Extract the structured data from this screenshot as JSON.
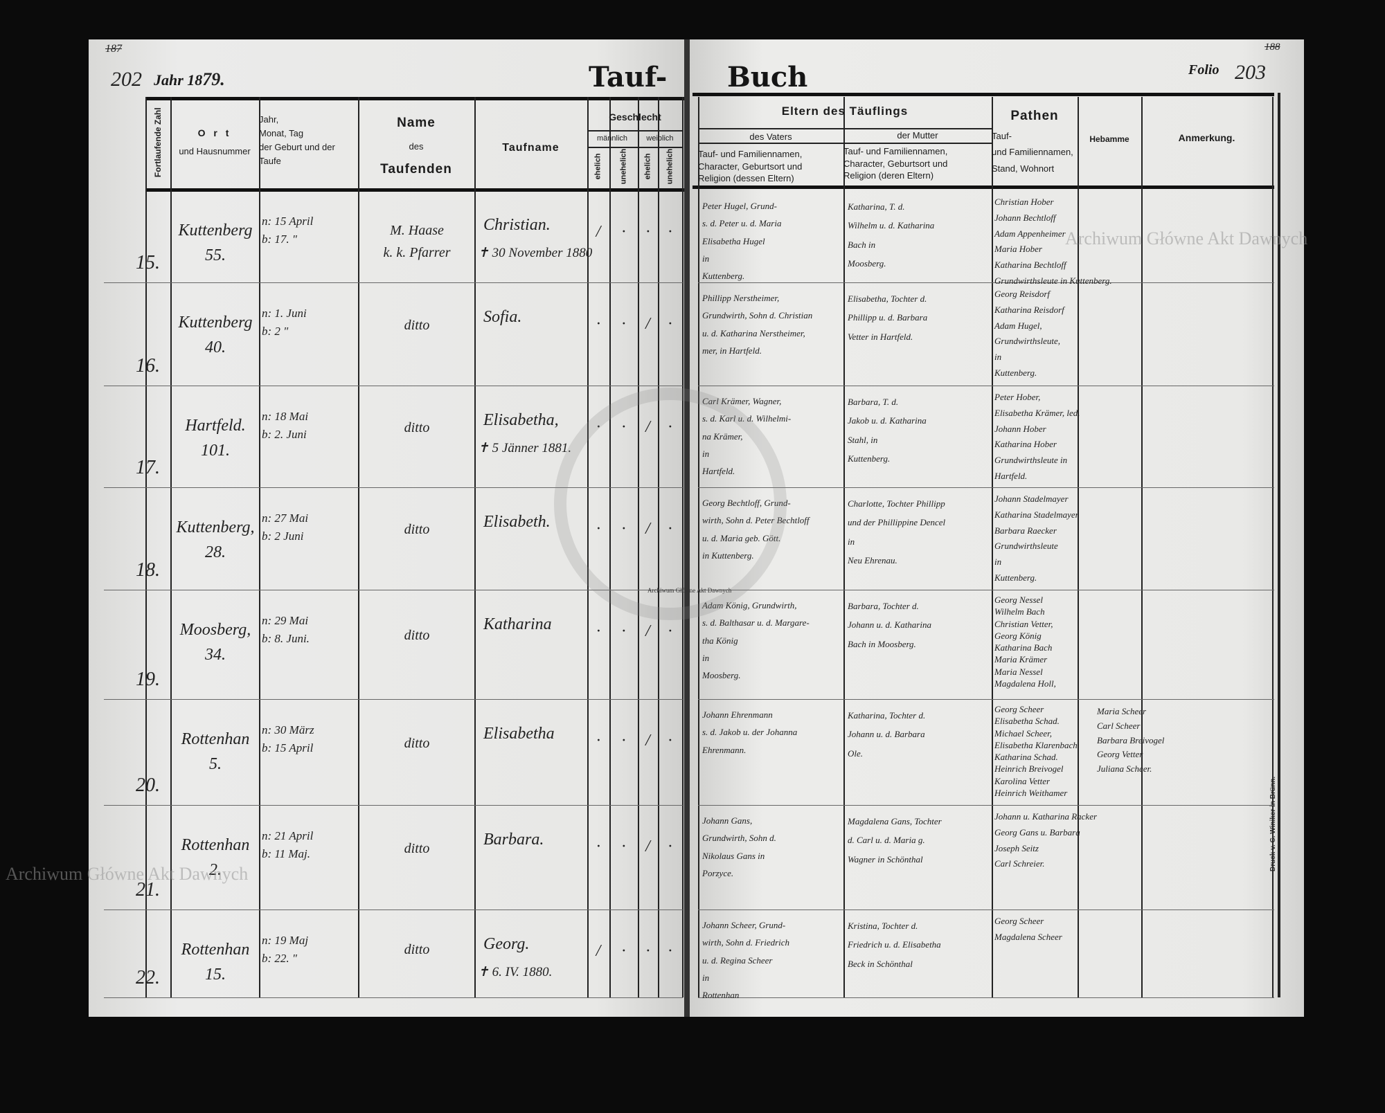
{
  "left_page": {
    "old_folio": "187",
    "folio_number": "202",
    "year_label": "Jahr 18",
    "year_value": "79.",
    "title_part": "Tauf-"
  },
  "right_page": {
    "title_part": "Buch",
    "folio_label": "Folio",
    "folio_number": "203",
    "old_folio": "188",
    "printer": "Druck v. C. Winiker in Brünn."
  },
  "headers": {
    "fortlaufende_zahl": "Fortlaufende Zahl",
    "ort": "O r t",
    "ort_sub": "und Hausnummer",
    "datum": [
      "Jahr,",
      "Monat, Tag",
      "der Geburt und der",
      "Taufe"
    ],
    "name_des": [
      "Name",
      "des",
      "Taufenden"
    ],
    "taufname": "Taufname",
    "geschlecht": "Geschlecht",
    "maennlich": "männlich",
    "weiblich": "weiblich",
    "ehelich": "ehelich",
    "unehelich": "unehelich",
    "eltern": "Eltern des Täuflings",
    "vaters": "des Vaters",
    "vaters_sub": [
      "Tauf- und Familiennamen,",
      "Character, Geburtsort und",
      "Religion (dessen Eltern)"
    ],
    "mutter": "der Mutter",
    "mutter_sub": [
      "Tauf- und Familiennamen,",
      "Character, Geburtsort und",
      "Religion (deren Eltern)"
    ],
    "pathen": "Pathen",
    "pathen_sub": [
      "Tauf-",
      "und Familiennamen,",
      "Stand, Wohnort"
    ],
    "hebamme": "Hebamme",
    "anmerkung": "Anmerkung."
  },
  "rows": [
    {
      "no": "15.",
      "ort": [
        "Kuttenberg",
        "55."
      ],
      "datum": [
        "n: 15 April",
        "b: 17. \""
      ],
      "taufende": [
        "M. Haase",
        "k. k. Pfarrer"
      ],
      "taufname": "Christian.",
      "note": "✝ 30 November 1880",
      "marks": [
        "/",
        "·",
        "·",
        "·"
      ],
      "vater": [
        "Peter Hugel, Grund-",
        "s. d. Peter u. d. Maria",
        "Elisabetha Hugel",
        "in",
        "Kuttenberg."
      ],
      "mutter": [
        "Katharina, T. d.",
        "Wilhelm u. d. Katharina",
        "Bach in",
        "Moosberg."
      ],
      "pathen": [
        "Christian Hober",
        "Johann Bechtloff",
        "Adam Appenheimer",
        "Maria Hober",
        "Katharina Bechtloff",
        "Grundwirthsleute in Kuttenberg."
      ],
      "hebamme": []
    },
    {
      "no": "16.",
      "ort": [
        "Kuttenberg",
        "40."
      ],
      "datum": [
        "n: 1. Juni",
        "b: 2 \""
      ],
      "taufende": [
        "ditto"
      ],
      "taufname": "Sofia.",
      "note": "",
      "marks": [
        "·",
        "·",
        "/",
        "·"
      ],
      "vater": [
        "Phillipp Nerstheimer,",
        "Grundwirth, Sohn d. Christian",
        "u. d. Katharina Nerstheimer,",
        "mer, in Hartfeld."
      ],
      "mutter": [
        "Elisabetha, Tochter d.",
        "Phillipp u. d. Barbara",
        "Vetter in Hartfeld."
      ],
      "pathen": [
        "Georg Reisdorf",
        "Katharina Reisdorf",
        "Adam Hugel,",
        "Grundwirthsleute,",
        "in",
        "Kuttenberg."
      ],
      "hebamme": []
    },
    {
      "no": "17.",
      "ort": [
        "Hartfeld.",
        "101."
      ],
      "datum": [
        "n: 18 Mai",
        "b: 2. Juni"
      ],
      "taufende": [
        "ditto"
      ],
      "taufname": "Elisabetha,",
      "note": "✝ 5 Jänner 1881.",
      "marks": [
        "·",
        "·",
        "/",
        "·"
      ],
      "vater": [
        "Carl Krämer, Wagner,",
        "s. d. Karl u. d. Wilhelmi-",
        "na Krämer,",
        "in",
        "Hartfeld."
      ],
      "mutter": [
        "Barbara, T. d.",
        "Jakob u. d. Katharina",
        "Stahl, in",
        "Kuttenberg."
      ],
      "pathen": [
        "Peter Hober,",
        "Elisabetha Krämer, led.",
        "Johann Hober",
        "Katharina Hober",
        "Grundwirthsleute in",
        "Hartfeld."
      ],
      "hebamme": []
    },
    {
      "no": "18.",
      "ort": [
        "Kuttenberg,",
        "28."
      ],
      "datum": [
        "n: 27 Mai",
        "b: 2 Juni"
      ],
      "taufende": [
        "ditto"
      ],
      "taufname": "Elisabeth.",
      "note": "",
      "marks": [
        "·",
        "·",
        "/",
        "·"
      ],
      "vater": [
        "Georg Bechtloff, Grund-",
        "wirth, Sohn d. Peter Bechtloff",
        "u. d. Maria geb. Gött.",
        "in Kuttenberg."
      ],
      "mutter": [
        "Charlotte, Tochter Phillipp",
        "und der Phillippine Dencel",
        "in",
        "Neu Ehrenau."
      ],
      "pathen": [
        "Johann Stadelmayer",
        "Katharina Stadelmayer",
        "Barbara Raecker",
        "Grundwirthsleute",
        "in",
        "Kuttenberg."
      ],
      "hebamme": []
    },
    {
      "no": "19.",
      "ort": [
        "Moosberg,",
        "34."
      ],
      "datum": [
        "n: 29 Mai",
        "b: 8. Juni."
      ],
      "taufende": [
        "ditto"
      ],
      "taufname": "Katharina",
      "note": "",
      "marks": [
        "·",
        "·",
        "/",
        "·"
      ],
      "vater": [
        "Adam König, Grundwirth,",
        "s. d. Balthasar u. d. Margare-",
        "tha König",
        "in",
        "Moosberg."
      ],
      "mutter": [
        "Barbara, Tochter d.",
        "Johann u. d. Katharina",
        "Bach in Moosberg."
      ],
      "pathen": [
        "Georg Nessel",
        "Wilhelm Bach",
        "Christian Vetter,",
        "Georg König",
        "Katharina Bach",
        "Maria Krämer",
        "Maria Nessel",
        "Magdalena Holl,"
      ],
      "hebamme": []
    },
    {
      "no": "20.",
      "ort": [
        "Rottenhan",
        "5."
      ],
      "datum": [
        "n: 30 März",
        "b: 15 April"
      ],
      "taufende": [
        "ditto"
      ],
      "taufname": "Elisabetha",
      "note": "",
      "marks": [
        "·",
        "·",
        "/",
        "·"
      ],
      "vater": [
        "Johann Ehrenmann",
        "s. d. Jakob u. der Johanna",
        "Ehrenmann."
      ],
      "mutter": [
        "Katharina, Tochter d.",
        "Johann u. d. Barbara",
        "Ole."
      ],
      "pathen": [
        "Georg Scheer",
        "Elisabetha Schad.",
        "Michael Scheer,",
        "Elisabetha Klarenbach",
        "Katharina Schad.",
        "Heinrich Breivogel",
        "Karolina Vetter",
        "Heinrich Weithamer"
      ],
      "hebamme": [
        "Maria Scheer",
        "Carl Scheer",
        "Barbara Breivogel",
        "Georg Vetter",
        "Juliana Scheer."
      ]
    },
    {
      "no": "21.",
      "ort": [
        "Rottenhan",
        "2."
      ],
      "datum": [
        "n: 21 April",
        "b: 11 Maj."
      ],
      "taufende": [
        "ditto"
      ],
      "taufname": "Barbara.",
      "note": "",
      "marks": [
        "·",
        "·",
        "/",
        "·"
      ],
      "vater": [
        "Johann Gans,",
        "Grundwirth, Sohn d.",
        "Nikolaus Gans in",
        "Porzyce."
      ],
      "mutter": [
        "Magdalena Gans, Tochter",
        "d. Carl u. d. Maria g.",
        "Wagner in Schönthal"
      ],
      "pathen": [
        "Johann u. Katharina Racker",
        "Georg Gans u. Barbara",
        "Joseph Seitz",
        "Carl Schreier."
      ],
      "hebamme": []
    },
    {
      "no": "22.",
      "ort": [
        "Rottenhan",
        "15."
      ],
      "datum": [
        "n: 19 Maj",
        "b: 22. \""
      ],
      "taufende": [
        "ditto"
      ],
      "taufname": "Georg.",
      "note": "✝ 6. IV. 1880.",
      "marks": [
        "/",
        "·",
        "·",
        "·"
      ],
      "vater": [
        "Johann Scheer, Grund-",
        "wirth, Sohn d. Friedrich",
        "u. d. Regina Scheer",
        "in",
        "Rottenhan"
      ],
      "mutter": [
        "Kristina, Tochter d.",
        "Friedrich u. d. Elisabetha",
        "Beck in Schönthal"
      ],
      "pathen": [
        "Georg Scheer",
        "Magdalena Scheer"
      ],
      "hebamme": []
    }
  ],
  "watermarks": {
    "text": "Archiwum Główne Akt Dawnych",
    "seal_text": "ARCHIWUM GŁÓWNE AKT DAWNYCH"
  }
}
